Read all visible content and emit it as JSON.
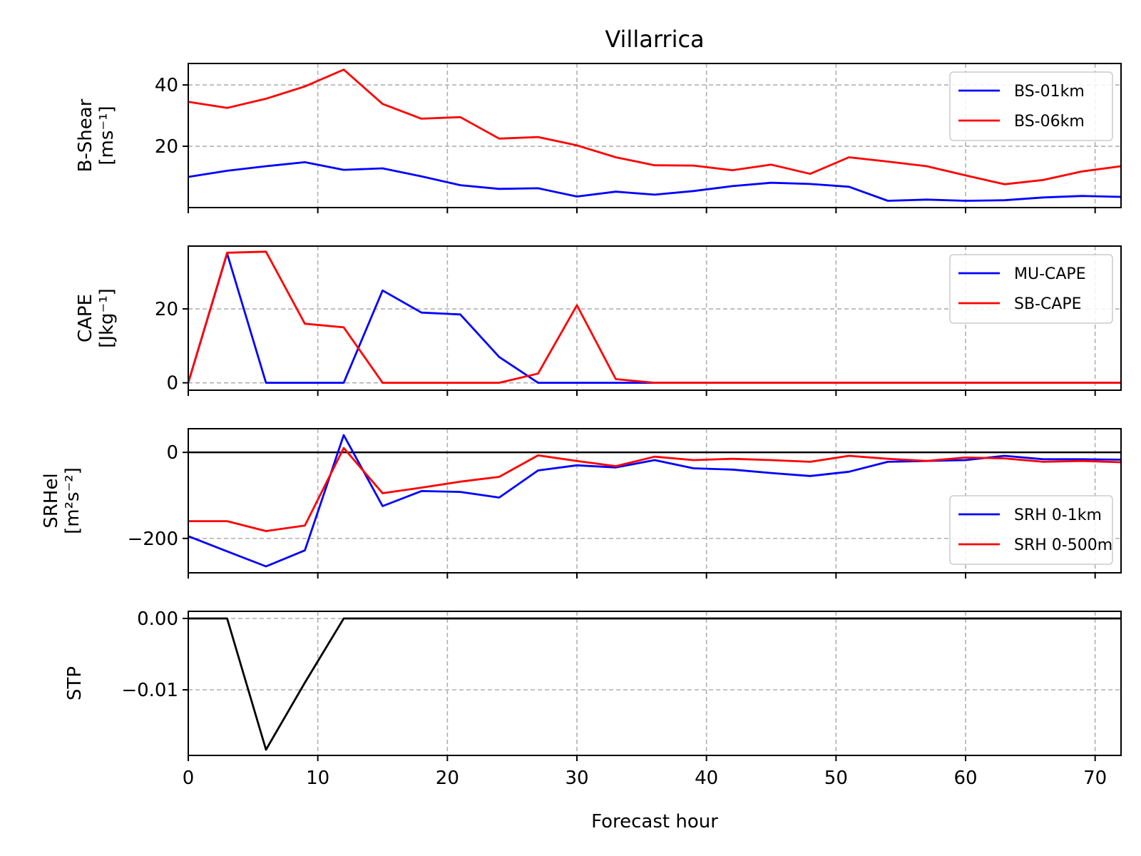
{
  "chart_data": {
    "type": "line",
    "title": "Villarrica",
    "xlabel": "Forecast hour",
    "xlim": [
      0,
      72
    ],
    "xticks": [
      "0",
      "10",
      "20",
      "30",
      "40",
      "50",
      "60",
      "70"
    ],
    "x": [
      0,
      3,
      6,
      9,
      12,
      15,
      18,
      21,
      24,
      27,
      30,
      33,
      36,
      39,
      42,
      45,
      48,
      51,
      54,
      57,
      60,
      63,
      66,
      69,
      72
    ],
    "colors": {
      "blue": "#0000ff",
      "red": "#ff0000",
      "black": "#000000"
    },
    "panels": [
      {
        "id": "bshear",
        "ylabel_line1": "B-Shear",
        "ylabel_line2": "[ms⁻¹]",
        "ylim": [
          0,
          47
        ],
        "yticks": [
          20,
          40
        ],
        "ytick_labels": [
          "20",
          "40"
        ],
        "legend_position": "top-right",
        "series": [
          {
            "name": "BS-01km",
            "color": "blue",
            "values": [
              10,
              12,
              13.5,
              14.8,
              12.3,
              12.8,
              10.2,
              7.3,
              6.1,
              6.3,
              3.6,
              5.2,
              4.2,
              5.4,
              7,
              8.1,
              7.7,
              6.8,
              2.2,
              2.6,
              2.2,
              2.4,
              3.3,
              3.8,
              3.5
            ]
          },
          {
            "name": "BS-06km",
            "color": "red",
            "values": [
              34.5,
              32.5,
              35.5,
              39.5,
              45,
              33.8,
              29,
              29.5,
              22.5,
              23,
              20.3,
              16.4,
              13.8,
              13.7,
              12.2,
              14,
              11,
              16.4,
              15,
              13.5,
              10.5,
              7.6,
              9,
              11.8,
              13.5
            ]
          }
        ]
      },
      {
        "id": "cape",
        "ylabel_line1": "CAPE",
        "ylabel_line2": "[Jkg⁻¹]",
        "ylim": [
          -2,
          37
        ],
        "yticks": [
          0,
          20
        ],
        "ytick_labels": [
          "0",
          "20"
        ],
        "legend_position": "top-right",
        "series": [
          {
            "name": "MU-CAPE",
            "color": "blue",
            "values": [
              0,
              35,
              0,
              0,
              0,
              25,
              19,
              18.5,
              7,
              0,
              0,
              0,
              0,
              0,
              0,
              0,
              0,
              0,
              0,
              0,
              0,
              0,
              0,
              0,
              0
            ]
          },
          {
            "name": "SB-CAPE",
            "color": "red",
            "values": [
              0,
              35.2,
              35.5,
              16,
              15,
              0,
              0,
              0,
              0,
              2.5,
              21,
              1,
              0,
              0,
              0,
              0,
              0,
              0,
              0,
              0,
              0,
              0,
              0,
              0,
              0
            ]
          }
        ]
      },
      {
        "id": "srhel",
        "ylabel_line1": "SRHel",
        "ylabel_line2": "[m²s⁻²]",
        "ylim": [
          -280,
          55
        ],
        "yticks": [
          -200,
          0
        ],
        "ytick_labels": [
          "−200",
          "0"
        ],
        "zero_line": true,
        "legend_position": "lower-right",
        "series": [
          {
            "name": "SRH 0-1km",
            "color": "blue",
            "values": [
              -195,
              -230,
              -265,
              -228,
              40,
              -125,
              -90,
              -92,
              -105,
              -42,
              -30,
              -35,
              -18,
              -37,
              -40,
              -48,
              -55,
              -45,
              -22,
              -20,
              -18,
              -8,
              -16,
              -16,
              -17
            ]
          },
          {
            "name": "SRH 0-500m",
            "color": "red",
            "values": [
              -160,
              -160,
              -183,
              -170,
              10,
              -95,
              -82,
              -68,
              -57,
              -7,
              -20,
              -32,
              -10,
              -18,
              -15,
              -18,
              -22,
              -8,
              -15,
              -20,
              -12,
              -14,
              -22,
              -20,
              -23
            ]
          }
        ]
      },
      {
        "id": "stp",
        "ylabel_line1": "STP",
        "ylabel_line2": "",
        "ylim": [
          -0.0192,
          0.001
        ],
        "yticks": [
          -0.01,
          0
        ],
        "ytick_labels": [
          "−0.01",
          "0.00"
        ],
        "legend_position": "none",
        "series": [
          {
            "name": "STP",
            "color": "black",
            "values": [
              0,
              0,
              -0.0184,
              -0.009,
              0,
              0,
              0,
              0,
              0,
              0,
              0,
              0,
              0,
              0,
              0,
              0,
              0,
              0,
              0,
              0,
              0,
              0,
              0,
              0,
              0
            ]
          }
        ]
      }
    ]
  }
}
